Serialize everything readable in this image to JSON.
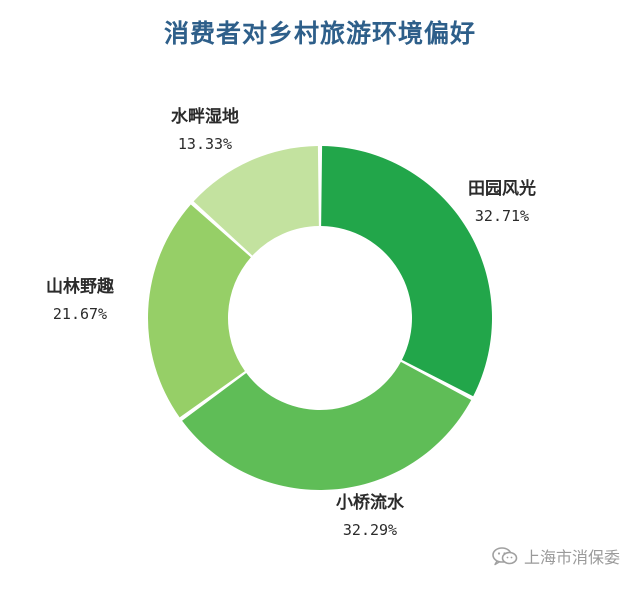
{
  "chart_data": {
    "type": "pie",
    "style": "donut",
    "title": "消费者对乡村旅游环境偏好",
    "slices": [
      {
        "label": "田园风光",
        "value": 32.71,
        "value_label": "32.71%",
        "color": "#22a64a"
      },
      {
        "label": "小桥流水",
        "value": 32.29,
        "value_label": "32.29%",
        "color": "#5fbd57"
      },
      {
        "label": "山林野趣",
        "value": 21.67,
        "value_label": "21.67%",
        "color": "#96cf67"
      },
      {
        "label": "水畔湿地",
        "value": 13.33,
        "value_label": "13.33%",
        "color": "#c3e29f"
      }
    ],
    "start": "top",
    "direction": "clockwise"
  },
  "watermark": {
    "text": "上海市消保委",
    "icon": "wechat-icon"
  }
}
